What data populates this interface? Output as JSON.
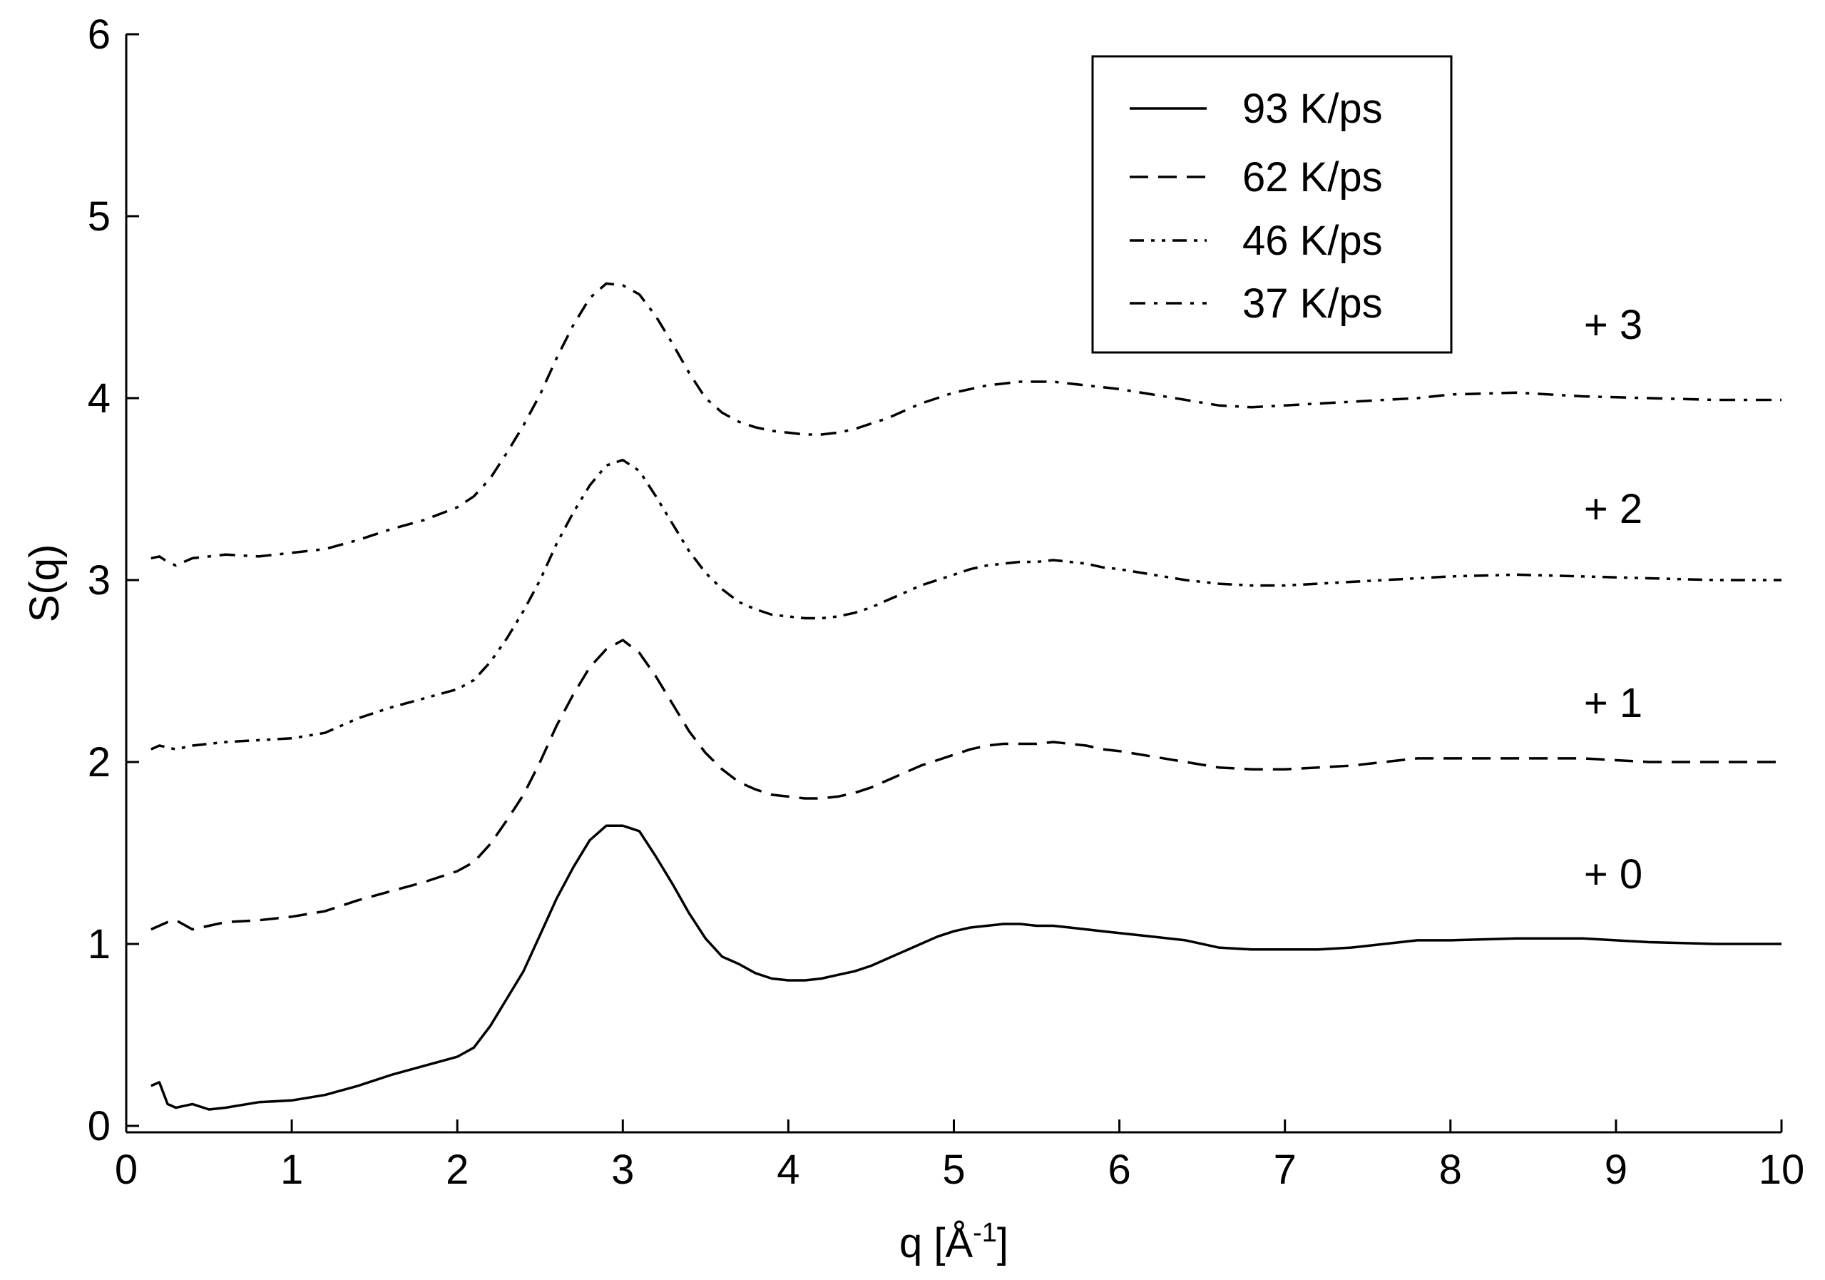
{
  "chart_data": {
    "type": "line",
    "xlabel": "q [Å",
    "xlabel_sup": "-1",
    "xlabel_close": "]",
    "ylabel": "S(q)",
    "xlim": [
      0,
      10
    ],
    "ylim": [
      0,
      6
    ],
    "xticks": [
      "0",
      "1",
      "2",
      "3",
      "4",
      "5",
      "6",
      "7",
      "8",
      "9",
      "10"
    ],
    "yticks": [
      "0",
      "1",
      "2",
      "3",
      "4",
      "5",
      "6"
    ],
    "grid": false,
    "legend_position": "top-right",
    "offset_labels": [
      "+ 0",
      "+ 1",
      "+ 2",
      "+ 3"
    ],
    "series": [
      {
        "name": "93 K/ps",
        "dash": "solid",
        "offset": 0,
        "x": [
          0.15,
          0.2,
          0.25,
          0.3,
          0.4,
          0.5,
          0.6,
          0.8,
          1.0,
          1.2,
          1.4,
          1.6,
          1.8,
          2.0,
          2.1,
          2.2,
          2.3,
          2.4,
          2.5,
          2.6,
          2.7,
          2.8,
          2.9,
          3.0,
          3.1,
          3.2,
          3.3,
          3.4,
          3.5,
          3.6,
          3.7,
          3.8,
          3.9,
          4.0,
          4.1,
          4.2,
          4.3,
          4.4,
          4.5,
          4.6,
          4.7,
          4.8,
          4.9,
          5.0,
          5.1,
          5.2,
          5.3,
          5.4,
          5.5,
          5.6,
          5.7,
          5.8,
          5.9,
          6.0,
          6.2,
          6.4,
          6.6,
          6.8,
          7.0,
          7.2,
          7.4,
          7.6,
          7.8,
          8.0,
          8.4,
          8.8,
          9.2,
          9.6,
          10.0
        ],
        "y": [
          0.22,
          0.24,
          0.12,
          0.1,
          0.12,
          0.09,
          0.1,
          0.13,
          0.14,
          0.17,
          0.22,
          0.28,
          0.33,
          0.38,
          0.43,
          0.55,
          0.7,
          0.85,
          1.05,
          1.25,
          1.42,
          1.57,
          1.65,
          1.65,
          1.62,
          1.48,
          1.33,
          1.17,
          1.03,
          0.93,
          0.89,
          0.84,
          0.81,
          0.8,
          0.8,
          0.81,
          0.83,
          0.85,
          0.88,
          0.92,
          0.96,
          1.0,
          1.04,
          1.07,
          1.09,
          1.1,
          1.11,
          1.11,
          1.1,
          1.1,
          1.09,
          1.08,
          1.07,
          1.06,
          1.04,
          1.02,
          0.98,
          0.97,
          0.97,
          0.97,
          0.98,
          1.0,
          1.02,
          1.02,
          1.03,
          1.03,
          1.01,
          1.0,
          1.0
        ]
      },
      {
        "name": "62 K/ps",
        "dash": "dashed",
        "offset": 1,
        "x": [
          0.15,
          0.2,
          0.25,
          0.3,
          0.4,
          0.5,
          0.6,
          0.8,
          1.0,
          1.2,
          1.4,
          1.6,
          1.8,
          2.0,
          2.1,
          2.2,
          2.3,
          2.4,
          2.5,
          2.6,
          2.7,
          2.8,
          2.9,
          3.0,
          3.1,
          3.2,
          3.3,
          3.4,
          3.5,
          3.6,
          3.7,
          3.8,
          3.9,
          4.0,
          4.1,
          4.2,
          4.3,
          4.4,
          4.5,
          4.6,
          4.7,
          4.8,
          4.9,
          5.0,
          5.1,
          5.2,
          5.3,
          5.4,
          5.5,
          5.6,
          5.7,
          5.8,
          5.9,
          6.0,
          6.2,
          6.4,
          6.6,
          6.8,
          7.0,
          7.2,
          7.4,
          7.6,
          7.8,
          8.0,
          8.4,
          8.8,
          9.2,
          9.6,
          10.0
        ],
        "y": [
          1.08,
          1.1,
          1.12,
          1.13,
          1.08,
          1.1,
          1.12,
          1.13,
          1.15,
          1.18,
          1.24,
          1.29,
          1.34,
          1.4,
          1.45,
          1.55,
          1.68,
          1.82,
          2.0,
          2.2,
          2.37,
          2.52,
          2.62,
          2.67,
          2.6,
          2.47,
          2.32,
          2.17,
          2.05,
          1.96,
          1.89,
          1.85,
          1.82,
          1.81,
          1.8,
          1.8,
          1.81,
          1.83,
          1.86,
          1.9,
          1.94,
          1.98,
          2.01,
          2.04,
          2.07,
          2.09,
          2.1,
          2.1,
          2.1,
          2.11,
          2.1,
          2.09,
          2.07,
          2.06,
          2.03,
          2.0,
          1.97,
          1.96,
          1.96,
          1.97,
          1.98,
          2.0,
          2.02,
          2.02,
          2.02,
          2.02,
          2.0,
          2.0,
          2.0
        ]
      },
      {
        "name": "46 K/ps",
        "dash": "dashdotdot",
        "offset": 2,
        "x": [
          0.15,
          0.2,
          0.25,
          0.3,
          0.4,
          0.5,
          0.6,
          0.8,
          1.0,
          1.2,
          1.4,
          1.6,
          1.8,
          2.0,
          2.1,
          2.2,
          2.3,
          2.4,
          2.5,
          2.6,
          2.7,
          2.8,
          2.9,
          3.0,
          3.1,
          3.2,
          3.3,
          3.4,
          3.5,
          3.6,
          3.7,
          3.8,
          3.9,
          4.0,
          4.1,
          4.2,
          4.3,
          4.4,
          4.5,
          4.6,
          4.7,
          4.8,
          4.9,
          5.0,
          5.1,
          5.2,
          5.3,
          5.4,
          5.5,
          5.6,
          5.7,
          5.8,
          5.9,
          6.0,
          6.2,
          6.4,
          6.6,
          6.8,
          7.0,
          7.2,
          7.4,
          7.6,
          7.8,
          8.0,
          8.4,
          8.8,
          9.2,
          9.6,
          10.0
        ],
        "y": [
          2.07,
          2.09,
          2.08,
          2.07,
          2.09,
          2.1,
          2.11,
          2.12,
          2.13,
          2.16,
          2.24,
          2.3,
          2.35,
          2.4,
          2.45,
          2.55,
          2.68,
          2.83,
          3.0,
          3.2,
          3.37,
          3.52,
          3.63,
          3.66,
          3.6,
          3.46,
          3.31,
          3.16,
          3.04,
          2.95,
          2.88,
          2.84,
          2.81,
          2.8,
          2.79,
          2.79,
          2.8,
          2.82,
          2.85,
          2.89,
          2.93,
          2.97,
          3.0,
          3.03,
          3.06,
          3.08,
          3.09,
          3.1,
          3.1,
          3.11,
          3.1,
          3.09,
          3.07,
          3.06,
          3.03,
          3.0,
          2.98,
          2.97,
          2.97,
          2.98,
          2.99,
          3.0,
          3.01,
          3.02,
          3.03,
          3.02,
          3.01,
          3.0,
          3.0
        ]
      },
      {
        "name": "37 K/ps",
        "dash": "dashdot",
        "offset": 3,
        "x": [
          0.15,
          0.2,
          0.25,
          0.3,
          0.4,
          0.5,
          0.6,
          0.8,
          1.0,
          1.2,
          1.4,
          1.6,
          1.8,
          2.0,
          2.1,
          2.2,
          2.3,
          2.4,
          2.5,
          2.6,
          2.7,
          2.8,
          2.9,
          3.0,
          3.1,
          3.2,
          3.3,
          3.4,
          3.5,
          3.6,
          3.7,
          3.8,
          3.9,
          4.0,
          4.1,
          4.2,
          4.3,
          4.4,
          4.5,
          4.6,
          4.7,
          4.8,
          4.9,
          5.0,
          5.1,
          5.2,
          5.3,
          5.4,
          5.5,
          5.6,
          5.7,
          5.8,
          5.9,
          6.0,
          6.2,
          6.4,
          6.6,
          6.8,
          7.0,
          7.2,
          7.4,
          7.6,
          7.8,
          8.0,
          8.4,
          8.8,
          9.2,
          9.6,
          10.0
        ],
        "y": [
          3.12,
          3.13,
          3.1,
          3.08,
          3.12,
          3.13,
          3.14,
          3.13,
          3.15,
          3.17,
          3.22,
          3.28,
          3.33,
          3.4,
          3.46,
          3.56,
          3.7,
          3.85,
          4.02,
          4.22,
          4.4,
          4.55,
          4.63,
          4.62,
          4.57,
          4.45,
          4.3,
          4.14,
          4.0,
          3.92,
          3.87,
          3.84,
          3.82,
          3.81,
          3.8,
          3.8,
          3.81,
          3.83,
          3.86,
          3.89,
          3.93,
          3.97,
          4.0,
          4.03,
          4.05,
          4.07,
          4.08,
          4.09,
          4.09,
          4.09,
          4.08,
          4.07,
          4.06,
          4.05,
          4.02,
          3.99,
          3.96,
          3.95,
          3.96,
          3.97,
          3.98,
          3.99,
          4.0,
          4.02,
          4.03,
          4.01,
          4.0,
          3.99,
          3.99
        ]
      }
    ]
  }
}
